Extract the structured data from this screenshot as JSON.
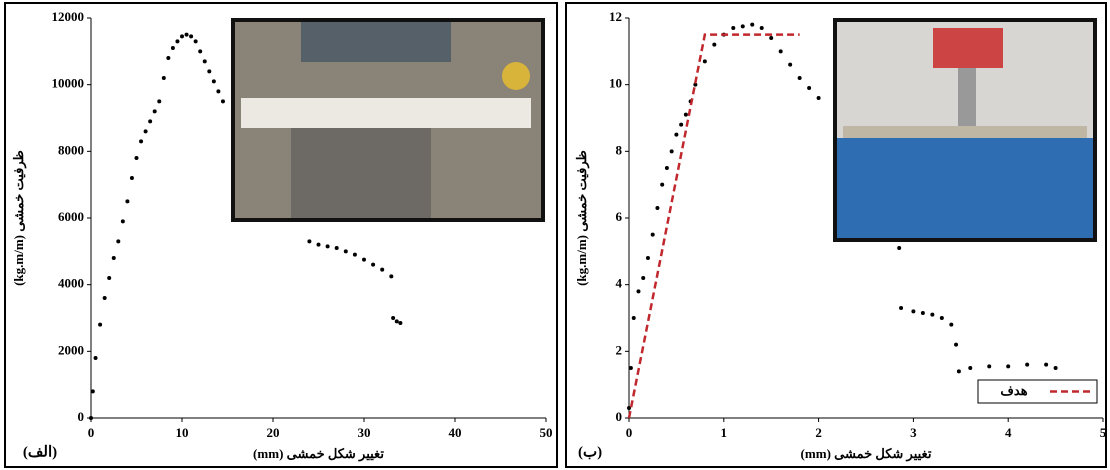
{
  "chart_data": [
    {
      "type": "scatter",
      "panel_label": "(الف)",
      "x_label": "تغییر شکل خمشی (mm)",
      "y_label": "ظرفیت خمشی (kg.m/m)",
      "xlim": [
        0,
        50
      ],
      "xticks": [
        0,
        10,
        20,
        30,
        40,
        50
      ],
      "ylim": [
        0,
        12000
      ],
      "yticks": [
        0,
        2000,
        4000,
        6000,
        8000,
        10000,
        12000
      ],
      "series": [
        {
          "color": "#000000",
          "x": [
            0,
            0.2,
            0.5,
            1,
            1.5,
            2,
            2.5,
            3,
            3.5,
            4,
            4.5,
            5,
            5.5,
            6,
            6.5,
            7,
            7.5,
            8,
            8.5,
            9,
            9.5,
            10,
            10.5,
            11,
            11.5,
            12,
            12.5,
            13,
            13.5,
            14,
            14.5,
            24,
            25,
            26,
            27,
            28,
            29,
            30,
            31,
            32,
            33,
            33.2,
            33.6,
            34
          ],
          "values": [
            0,
            800,
            1800,
            2800,
            3600,
            4200,
            4800,
            5300,
            5900,
            6500,
            7200,
            7800,
            8300,
            8600,
            8900,
            9200,
            9500,
            10200,
            10800,
            11100,
            11300,
            11450,
            11500,
            11450,
            11300,
            11000,
            10700,
            10400,
            10100,
            9800,
            9500,
            5300,
            5200,
            5150,
            5100,
            5000,
            4900,
            4750,
            4600,
            4450,
            4250,
            3000,
            2900,
            2850
          ]
        }
      ]
    },
    {
      "type": "scatter",
      "panel_label": "(ب)",
      "x_label": "تغییر شکل خمشی (mm)",
      "y_label": "ظرفیت خمشی (kg.m/m)",
      "xlim": [
        0,
        5
      ],
      "xticks": [
        0,
        1,
        2,
        3,
        4,
        5
      ],
      "ylim": [
        0,
        12
      ],
      "yticks": [
        0,
        2,
        4,
        6,
        8,
        10,
        12
      ],
      "series": [
        {
          "color": "#000000",
          "x": [
            0,
            0.02,
            0.05,
            0.1,
            0.15,
            0.2,
            0.25,
            0.3,
            0.35,
            0.4,
            0.45,
            0.5,
            0.55,
            0.6,
            0.65,
            0.7,
            0.8,
            0.9,
            1.0,
            1.1,
            1.2,
            1.3,
            1.4,
            1.5,
            1.6,
            1.7,
            1.8,
            1.9,
            2.0,
            2.85,
            2.87,
            3.0,
            3.1,
            3.2,
            3.3,
            3.4,
            3.45,
            3.48,
            3.6,
            3.8,
            4.0,
            4.2,
            4.4,
            4.5
          ],
          "values": [
            0.3,
            1.5,
            3,
            3.8,
            4.2,
            4.8,
            5.5,
            6.3,
            7,
            7.5,
            8,
            8.5,
            8.8,
            9.1,
            9.5,
            10,
            10.7,
            11.2,
            11.5,
            11.7,
            11.75,
            11.8,
            11.7,
            11.4,
            11,
            10.6,
            10.2,
            9.9,
            9.6,
            5.1,
            3.3,
            3.2,
            3.15,
            3.1,
            3.0,
            2.8,
            2.2,
            1.4,
            1.5,
            1.55,
            1.55,
            1.6,
            1.6,
            1.5
          ]
        },
        {
          "name": "هدف",
          "type": "line",
          "color": "#c0282d",
          "dashed": true,
          "x": [
            0,
            0.8,
            1.8
          ],
          "values": [
            0,
            11.5,
            11.5
          ]
        }
      ],
      "legend": "lower right"
    }
  ]
}
